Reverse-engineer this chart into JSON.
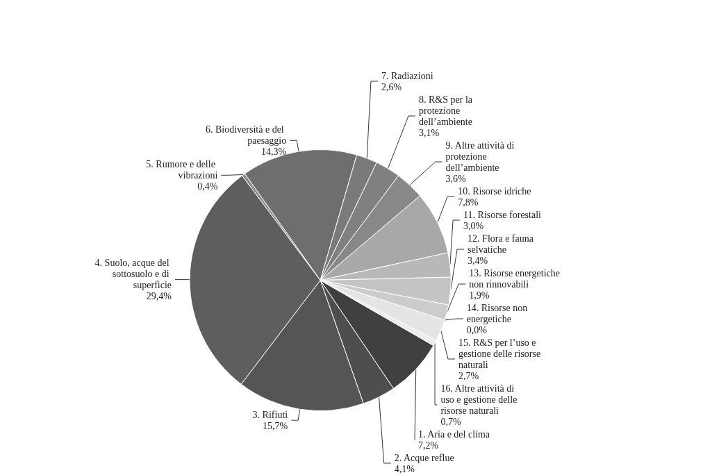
{
  "chart_data": {
    "type": "pie",
    "categories": [
      "1. Aria e del clima",
      "2. Acque reflue",
      "3. Rifiuti",
      "4. Suolo, acque del sottosuolo e di superficie",
      "5. Rumore e delle vibrazioni",
      "6. Biodiversità e del paesaggio",
      "7. Radiazioni",
      "8. R&S per la protezione dell’ambiente",
      "9. Altre attività di protezione dell’ambiente",
      "10. Risorse idriche",
      "11. Risorse forestali",
      "12. Flora e fauna selvatiche",
      "13. Risorse energetiche non rinnovabili",
      "14. Risorse non energetiche",
      "15. R&S per l’uso e gestione delle risorse naturali",
      "16. Altre attività di uso e gestione delle risorse naturali"
    ],
    "values": [
      7.2,
      4.1,
      15.7,
      29.4,
      0.4,
      14.3,
      2.6,
      3.1,
      3.6,
      7.8,
      3.0,
      3.4,
      1.9,
      0.0,
      2.7,
      0.7
    ],
    "value_labels": [
      "7,2%",
      "4,1%",
      "15,7%",
      "29,4%",
      "0,4%",
      "14,3%",
      "2,6%",
      "3,1%",
      "3,6%",
      "7,8%",
      "3,0%",
      "3,4%",
      "1,9%",
      "0,0%",
      "2,7%",
      "0,7%"
    ],
    "colors": [
      "#404040",
      "#4e4e4e",
      "#555555",
      "#5e5e5e",
      "#8a8a8a",
      "#6e6e6e",
      "#7a7a7a",
      "#808080",
      "#888888",
      "#a8a8a8",
      "#b8b8b8",
      "#c4c4c4",
      "#cccccc",
      "#d8d8d8",
      "#e4e4e4",
      "#ececec"
    ]
  }
}
